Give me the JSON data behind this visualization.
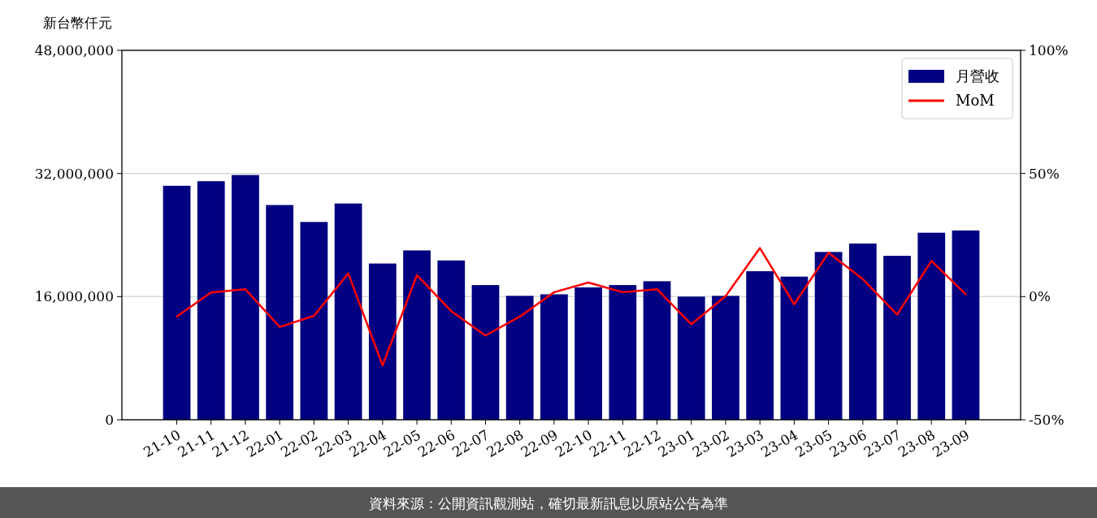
{
  "chart_data": {
    "type": "bar",
    "ylabel": "新台幣仟元",
    "categories": [
      "21-10",
      "21-11",
      "21-12",
      "22-01",
      "22-02",
      "22-03",
      "22-04",
      "22-05",
      "22-06",
      "22-07",
      "22-08",
      "22-09",
      "22-10",
      "22-11",
      "22-12",
      "23-01",
      "23-02",
      "23-03",
      "23-04",
      "23-05",
      "23-06",
      "23-07",
      "23-08",
      "23-09"
    ],
    "series": [
      {
        "name": "月營收",
        "color": "#000080",
        "values": [
          30400000,
          31000000,
          31800000,
          27900000,
          25700000,
          28100000,
          20300000,
          22000000,
          20700000,
          17500000,
          16100000,
          16300000,
          17200000,
          17500000,
          18000000,
          16000000,
          16100000,
          19300000,
          18600000,
          21800000,
          22900000,
          21300000,
          24300000,
          24600000
        ]
      },
      {
        "name": "MoM",
        "type": "line",
        "axis": "y2",
        "color": "#ff0000",
        "values": [
          -8.1,
          1.7,
          3.0,
          -12.3,
          -7.8,
          9.4,
          -27.9,
          8.7,
          -5.9,
          -15.8,
          -8.1,
          1.8,
          5.7,
          1.8,
          3.0,
          -11.2,
          0.2,
          19.7,
          -3.1,
          17.8,
          7.1,
          -7.3,
          14.5,
          1.0
        ]
      }
    ],
    "ylim": [
      0,
      48000000
    ],
    "yticks": [
      {
        "value": 0,
        "label": "0"
      },
      {
        "value": 16000000,
        "label": "16,000,000"
      },
      {
        "value": 32000000,
        "label": "32,000,000"
      },
      {
        "value": 48000000,
        "label": "48,000,000"
      }
    ],
    "y2lim": [
      -50,
      100
    ],
    "y2ticks": [
      {
        "value": -50,
        "label": "-50%"
      },
      {
        "value": 0,
        "label": "0%"
      },
      {
        "value": 50,
        "label": "50%"
      },
      {
        "value": 100,
        "label": "100%"
      }
    ],
    "grid": "y",
    "legend": "top right",
    "annotations": [
      "資料來源：公開資訊觀測站，確切最新訊息以原站公告為準"
    ]
  }
}
